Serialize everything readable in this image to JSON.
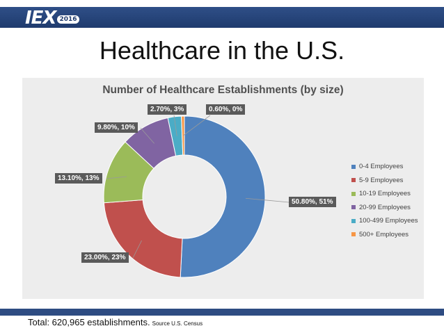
{
  "header": {
    "logo_text": "IEX",
    "logo_year": "2016"
  },
  "page_title": "Healthcare in the U.S.",
  "footer": {
    "total_text": "Total: 620,965 establishments.",
    "source_text": "Source U.S. Census"
  },
  "colors": {
    "header_bar": "#1f3b6e",
    "panel_bg": "#ededed"
  },
  "chart_data": {
    "type": "pie",
    "donut": true,
    "title": "Number of Healthcare Establishments (by size)",
    "legend_position": "right",
    "categories": [
      "0-4 Employees",
      "5-9 Employees",
      "10-19 Employees",
      "20-99 Employees",
      "100-499 Employees",
      "500+ Employees"
    ],
    "values": [
      50.8,
      23.0,
      13.1,
      9.8,
      2.7,
      0.6
    ],
    "labels": [
      "50.80%, 51%",
      "23.00%, 23%",
      "13.10%, 13%",
      "9.80%, 10%",
      "2.70%, 3%",
      "0.60%, 0%"
    ],
    "colors": [
      "#4f81bd",
      "#c0504d",
      "#9bbb59",
      "#8064a2",
      "#4bacc6",
      "#f79646"
    ]
  }
}
